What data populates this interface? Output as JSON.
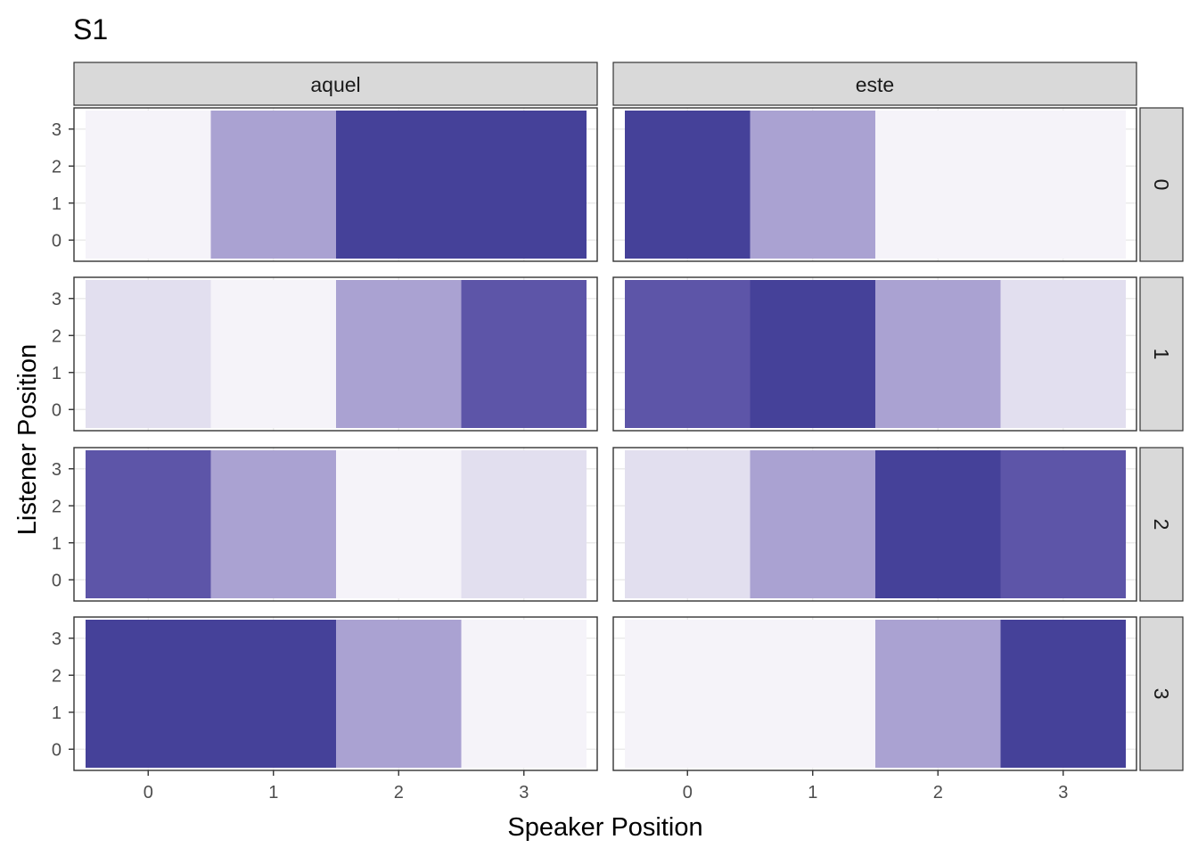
{
  "chart_data": {
    "type": "heatmap",
    "title": "S1",
    "xlabel": "Speaker Position",
    "ylabel": "Listener Position",
    "x_ticks": [
      "0",
      "1",
      "2",
      "3"
    ],
    "y_ticks": [
      "0",
      "1",
      "2",
      "3"
    ],
    "xlim": [
      -0.5,
      3.5
    ],
    "ylim": [
      -0.5,
      3.5
    ],
    "facet_columns": [
      "aquel",
      "este"
    ],
    "facet_rows": [
      "0",
      "1",
      "2",
      "3"
    ],
    "level_colors": [
      "#f5f3f9",
      "#e2dfef",
      "#aaa2d2",
      "#5d55a8",
      "#454199"
    ],
    "level_scale_note": "0 = lightest, 4 = darkest; each cell spans the full listener range",
    "panels": [
      {
        "row": "0",
        "col": "aquel",
        "levels": [
          0,
          2,
          4,
          4
        ]
      },
      {
        "row": "0",
        "col": "este",
        "levels": [
          4,
          2,
          0,
          0
        ]
      },
      {
        "row": "1",
        "col": "aquel",
        "levels": [
          1,
          0,
          2,
          3
        ]
      },
      {
        "row": "1",
        "col": "este",
        "levels": [
          3,
          4,
          2,
          1
        ]
      },
      {
        "row": "2",
        "col": "aquel",
        "levels": [
          3,
          2,
          0,
          1
        ]
      },
      {
        "row": "2",
        "col": "este",
        "levels": [
          1,
          2,
          4,
          3
        ]
      },
      {
        "row": "3",
        "col": "aquel",
        "levels": [
          4,
          4,
          2,
          0
        ]
      },
      {
        "row": "3",
        "col": "este",
        "levels": [
          0,
          0,
          2,
          4
        ]
      }
    ]
  }
}
